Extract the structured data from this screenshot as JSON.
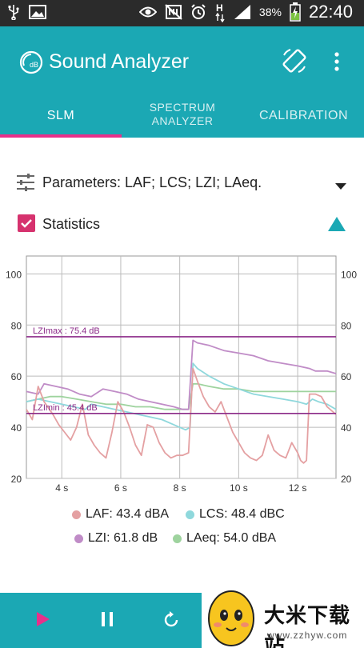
{
  "status_bar": {
    "battery_percent": "38%",
    "time": "22:40",
    "icons": [
      "usb-icon",
      "image-icon",
      "eye-icon",
      "nfc-off-icon",
      "alarm-icon",
      "h-plus-icon",
      "signal-icon",
      "battery-charging-icon"
    ],
    "network_label": "H"
  },
  "app_bar": {
    "title": "Sound Analyzer",
    "logo_icon": "db-gauge-icon",
    "actions": [
      "screen-rotate-icon",
      "more-vert-icon"
    ]
  },
  "tabs": [
    {
      "label": "SLM",
      "selected": true
    },
    {
      "label_line1": "SPECTRUM",
      "label_line2": "ANALYZER",
      "selected": false
    },
    {
      "label": "CALIBRATION",
      "selected": false
    }
  ],
  "colors": {
    "primary": "#1ba8b4",
    "accent": "#e8308a",
    "checkbox": "#d6326e",
    "laf": "#e4a0a2",
    "lcs": "#8fd8dc",
    "lzi": "#c08cc7",
    "laeq": "#9ed39e",
    "marker_line": "#8b2a88"
  },
  "parameters": {
    "label": "Parameters: LAF; LCS; LZI; LAeq."
  },
  "statistics": {
    "label": "Statistics",
    "checked": true
  },
  "chart_data": {
    "type": "line",
    "x_unit": "s",
    "xlim": [
      2.8,
      13.3
    ],
    "ylim": [
      20,
      107
    ],
    "x_ticks": [
      4,
      6,
      8,
      10,
      12
    ],
    "x_tick_labels": [
      "4 s",
      "6 s",
      "8 s",
      "10 s",
      "12 s"
    ],
    "y_ticks": [
      20,
      40,
      60,
      80,
      100
    ],
    "y_tick_labels": [
      "20",
      "40",
      "60",
      "80",
      "100"
    ],
    "grid": true,
    "annotations": [
      {
        "label": "LZImax : 75.4 dB",
        "y": 75.4
      },
      {
        "label": "LZImin : 45.4 dB",
        "y": 45.4
      }
    ],
    "series": [
      {
        "key": "laf",
        "x": [
          2.8,
          3.0,
          3.2,
          3.4,
          3.7,
          3.9,
          4.1,
          4.3,
          4.5,
          4.7,
          4.9,
          5.1,
          5.3,
          5.5,
          5.7,
          5.9,
          6.1,
          6.3,
          6.5,
          6.7,
          6.9,
          7.1,
          7.3,
          7.5,
          7.7,
          7.9,
          8.1,
          8.3,
          8.45,
          8.6,
          8.8,
          9.0,
          9.2,
          9.4,
          9.6,
          9.8,
          10.0,
          10.2,
          10.4,
          10.6,
          10.8,
          11.0,
          11.2,
          11.4,
          11.6,
          11.8,
          12.0,
          12.1,
          12.2,
          12.3,
          12.4,
          12.6,
          12.8,
          13.0,
          13.3
        ],
        "y": [
          47,
          43,
          56,
          50,
          45,
          41,
          38,
          35,
          40,
          49,
          37,
          33,
          30,
          28,
          38,
          50,
          46,
          40,
          33,
          29,
          41,
          40,
          34,
          30,
          28,
          29,
          29,
          30,
          63,
          58,
          52,
          48,
          46,
          50,
          44,
          38,
          34,
          30,
          28,
          27,
          29,
          37,
          31,
          29,
          28,
          34,
          30,
          27,
          26,
          27,
          53,
          53,
          52,
          48,
          45
        ]
      },
      {
        "key": "lcs",
        "x": [
          2.8,
          3.2,
          3.6,
          4.0,
          4.4,
          4.8,
          5.0,
          5.4,
          5.8,
          6.2,
          6.6,
          7.0,
          7.4,
          7.8,
          8.2,
          8.35,
          8.45,
          8.6,
          9.0,
          9.5,
          10.0,
          10.5,
          11.0,
          11.5,
          12.0,
          12.3,
          12.5,
          12.7,
          13.0,
          13.3
        ],
        "y": [
          50,
          51,
          50,
          49,
          48,
          47,
          49,
          48,
          47,
          46,
          45,
          44,
          43,
          41,
          39,
          40,
          65,
          63,
          60,
          57,
          55,
          53,
          52,
          51,
          50,
          49,
          51,
          50,
          49,
          47
        ]
      },
      {
        "key": "lzi",
        "x": [
          2.8,
          3.2,
          3.4,
          3.8,
          4.2,
          4.6,
          5.0,
          5.4,
          5.8,
          6.2,
          6.6,
          7.0,
          7.4,
          7.8,
          8.1,
          8.3,
          8.45,
          8.6,
          9.0,
          9.5,
          10.0,
          10.5,
          11.0,
          11.5,
          12.0,
          12.4,
          12.6,
          13.0,
          13.3
        ],
        "y": [
          54,
          53,
          57,
          56,
          55,
          53,
          52,
          55,
          54,
          53,
          51,
          50,
          49,
          48,
          47,
          47,
          74,
          73,
          72,
          70,
          69,
          68,
          66,
          65,
          64,
          63,
          62,
          62,
          61
        ]
      },
      {
        "key": "laeq",
        "x": [
          2.8,
          3.2,
          3.6,
          4.0,
          4.5,
          5.0,
          5.5,
          6.0,
          6.5,
          7.0,
          7.5,
          8.0,
          8.3,
          8.45,
          8.6,
          9.0,
          9.5,
          10.0,
          10.5,
          11.0,
          11.5,
          12.0,
          12.5,
          13.0,
          13.3
        ],
        "y": [
          50,
          51,
          52,
          52,
          51,
          50,
          49,
          49,
          48,
          48,
          47,
          47,
          47,
          57,
          57,
          56,
          55,
          55,
          54,
          54,
          54,
          54,
          54,
          54,
          54
        ]
      }
    ]
  },
  "legend": {
    "laf": "LAF: 43.4 dBA",
    "lcs": "LCS: 48.4 dBC",
    "lzi": "LZI: 61.8 dB",
    "laeq": "LAeq: 54.0 dBA"
  },
  "bottom_bar": {
    "buttons": [
      "play-icon",
      "pause-icon",
      "reset-icon"
    ]
  },
  "watermark": {
    "title": "大米下载站",
    "url": "www.zzhyw.com"
  }
}
